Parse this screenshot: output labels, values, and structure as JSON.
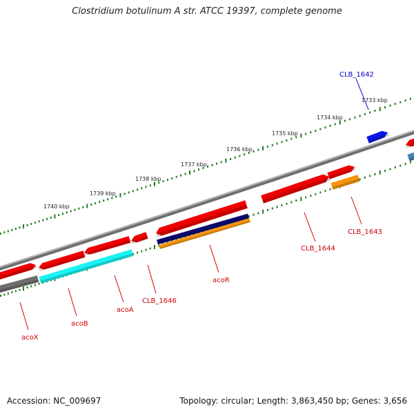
{
  "title": "Clostridium botulinum A str. ATCC 19397, complete genome",
  "footer": {
    "accession": "Accession: NC_009697",
    "summary": "Topology: circular; Length: 3,863,450 bp; Genes: 3,656"
  },
  "colors": {
    "background": "#ffffff",
    "backbone": "#888888",
    "tick": "#1f7a1f",
    "gene_red": "#ee0000",
    "gene_blue": "#0a16e8",
    "gene_cyan": "#19f3f3",
    "gene_orange": "#f7950e",
    "gene_navy": "#0b0b6e",
    "gene_gray": "#6e6e6e",
    "gene_steel": "#4682b4",
    "label_red": "#cc0000",
    "label_blue": "#0000cc"
  },
  "scale": {
    "unit": "kbp",
    "ticks": [
      {
        "kbp": 1740,
        "label": "1740 kbp"
      },
      {
        "kbp": 1739,
        "label": "1739 kbp"
      },
      {
        "kbp": 1738,
        "label": "1738 kbp"
      },
      {
        "kbp": 1737,
        "label": "1737 kbp"
      },
      {
        "kbp": 1736,
        "label": "1736 kbp"
      },
      {
        "kbp": 1735,
        "label": "1735 kbp"
      },
      {
        "kbp": 1734,
        "label": "1734 kbp"
      },
      {
        "kbp": 1733,
        "label": "1733 kbp"
      }
    ]
  },
  "genes": [
    {
      "label": "CLB_1642",
      "color_key": "label_blue"
    },
    {
      "label": "CLB_1643",
      "color_key": "label_red"
    },
    {
      "label": "CLB_1644",
      "color_key": "label_red"
    },
    {
      "label": "acoR",
      "color_key": "label_red"
    },
    {
      "label": "CLB_1646",
      "color_key": "label_red"
    },
    {
      "label": "acoA",
      "color_key": "label_red"
    },
    {
      "label": "acoB",
      "color_key": "label_red"
    },
    {
      "label": "acoX",
      "color_key": "label_red"
    }
  ]
}
